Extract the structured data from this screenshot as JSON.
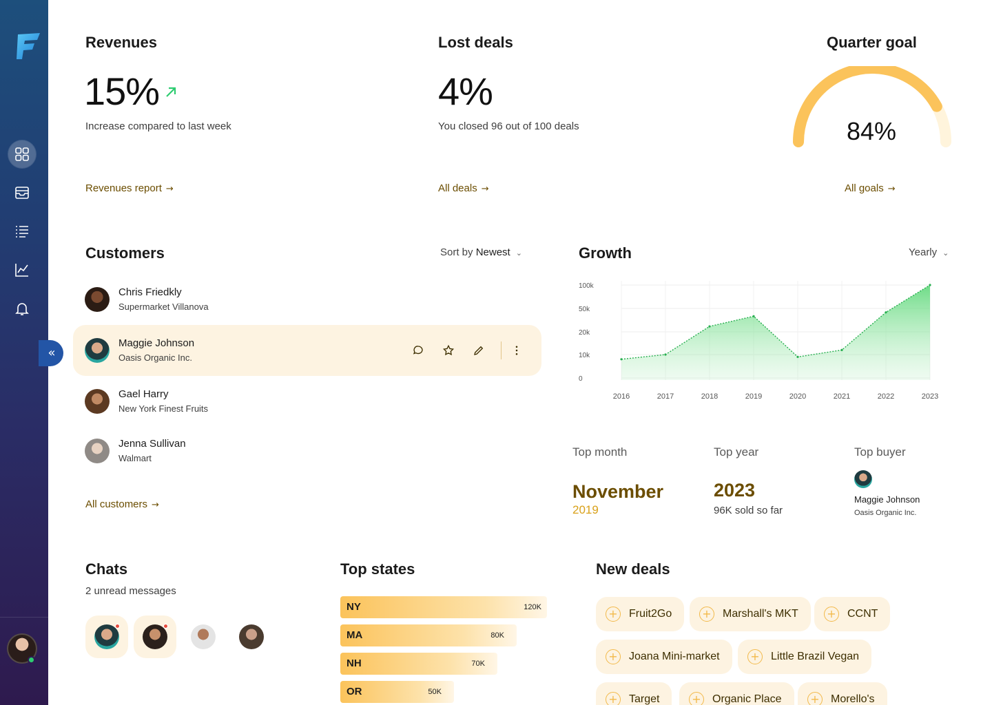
{
  "colors": {
    "accent": "#fbc35b",
    "link": "#6b4d00",
    "gold": "#d9a11a",
    "sidebar_top": "#1d4f7c",
    "sidebar_bottom": "#2e1a4e",
    "growth_line": "#2ecc71",
    "trend_up": "#2ecc71"
  },
  "sidebar": {
    "items": [
      {
        "icon": "dashboard-grid-icon",
        "active": true
      },
      {
        "icon": "inbox-icon",
        "active": false
      },
      {
        "icon": "list-icon",
        "active": false
      },
      {
        "icon": "chart-icon",
        "active": false
      },
      {
        "icon": "bell-icon",
        "active": false
      }
    ],
    "collapse_icon": "«"
  },
  "revenues": {
    "title": "Revenues",
    "value": "15%",
    "trend_icon": "arrow-up-right-icon",
    "caption": "Increase compared to last week",
    "link": "Revenues report"
  },
  "lost_deals": {
    "title": "Lost deals",
    "value": "4%",
    "caption": "You closed 96 out of 100 deals",
    "link": "All deals"
  },
  "quarter_goal": {
    "title": "Quarter goal",
    "value": "84%",
    "progress": 0.84,
    "link": "All goals"
  },
  "customers": {
    "title": "Customers",
    "sort_prefix": "Sort by",
    "sort_value": "Newest",
    "rows": [
      {
        "name": "Chris Friedkly",
        "company": "Supermarket Villanova"
      },
      {
        "name": "Maggie Johnson",
        "company": "Oasis Organic Inc."
      },
      {
        "name": "Gael Harry",
        "company": "New York Finest Fruits"
      },
      {
        "name": "Jenna Sullivan",
        "company": "Walmart"
      }
    ],
    "link": "All customers"
  },
  "growth": {
    "title": "Growth",
    "period": "Yearly"
  },
  "chart_data": {
    "type": "area",
    "x": [
      "2016",
      "2017",
      "2018",
      "2019",
      "2020",
      "2021",
      "2022",
      "2023"
    ],
    "y_ticks": [
      "100k",
      "50k",
      "20k",
      "10k",
      "0"
    ],
    "series": [
      {
        "values": [
          8000,
          10000,
          27000,
          40000,
          9000,
          12000,
          45000,
          100000
        ]
      }
    ],
    "y_scale": "nonlinear",
    "grid": true
  },
  "stats": {
    "top_month": {
      "label": "Top month",
      "value": "November",
      "sub": "2019"
    },
    "top_year": {
      "label": "Top year",
      "value": "2023",
      "sub": "96K sold so far"
    },
    "top_buyer": {
      "label": "Top buyer",
      "name": "Maggie Johnson",
      "company": "Oasis Organic Inc."
    }
  },
  "chats": {
    "title": "Chats",
    "caption": "2 unread messages"
  },
  "top_states": {
    "title": "Top states",
    "items": [
      {
        "code": "NY",
        "value": "120K",
        "amount": 120
      },
      {
        "code": "MA",
        "value": "80K",
        "amount": 80
      },
      {
        "code": "NH",
        "value": "70K",
        "amount": 70
      },
      {
        "code": "OR",
        "value": "50K",
        "amount": 50
      }
    ]
  },
  "new_deals": {
    "title": "New deals",
    "items": [
      "Fruit2Go",
      "Marshall's MKT",
      "CCNT",
      "Joana Mini-market",
      "Little Brazil Vegan",
      "Target",
      "Organic Place",
      "Morello's"
    ]
  }
}
